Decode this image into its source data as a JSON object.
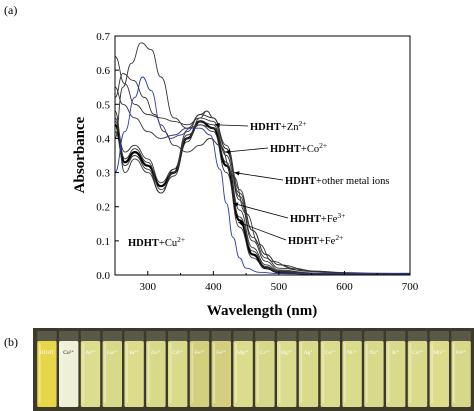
{
  "panel_a_label": "(a)",
  "panel_b_label": "(b)",
  "chart_data": {
    "type": "line",
    "xlabel": "Wavelength (nm)",
    "ylabel": "Absorbance",
    "xlim": [
      250,
      700
    ],
    "ylim": [
      0.0,
      0.7
    ],
    "xticks": [
      300,
      400,
      500,
      600,
      700
    ],
    "yticks": [
      0.0,
      0.1,
      0.2,
      0.3,
      0.4,
      0.5,
      0.6,
      0.7
    ],
    "annotations": [
      {
        "bold": "HDHT",
        "text": "+Zn",
        "sup": "2+",
        "arrow_to": [
          402,
          0.44
        ]
      },
      {
        "bold": "HDHT",
        "text": "+Co",
        "sup": "2+",
        "arrow_to": [
          418,
          0.36
        ]
      },
      {
        "bold": "HDHT",
        "text": "+other metal ions",
        "sup": "",
        "arrow_to": [
          432,
          0.3
        ]
      },
      {
        "bold": "HDHT",
        "text": "+Fe",
        "sup": "3+",
        "arrow_to": [
          430,
          0.21
        ]
      },
      {
        "bold": "HDHT",
        "text": "+Fe",
        "sup": "2+",
        "arrow_to": [
          438,
          0.155
        ]
      },
      {
        "bold": "HDHT",
        "text": "+Cu",
        "sup": "2+",
        "arrow_to": null
      }
    ],
    "series": [
      {
        "color": "#000000",
        "bold": true,
        "x": [
          250,
          265,
          280,
          300,
          320,
          340,
          360,
          380,
          400,
          420,
          440,
          460,
          480,
          500,
          550,
          600,
          650,
          700
        ],
        "y": [
          0.44,
          0.33,
          0.36,
          0.32,
          0.26,
          0.3,
          0.4,
          0.45,
          0.43,
          0.32,
          0.16,
          0.06,
          0.02,
          0.008,
          0.004,
          0.003,
          0.003,
          0.003
        ]
      },
      {
        "color": "#333333",
        "bold": false,
        "x": [
          250,
          265,
          280,
          300,
          320,
          340,
          360,
          380,
          400,
          420,
          440,
          460,
          480,
          500,
          550,
          600,
          650,
          700
        ],
        "y": [
          0.46,
          0.34,
          0.37,
          0.33,
          0.25,
          0.29,
          0.39,
          0.46,
          0.45,
          0.35,
          0.19,
          0.08,
          0.03,
          0.012,
          0.005,
          0.003,
          0.003,
          0.003
        ]
      },
      {
        "color": "#333333",
        "bold": false,
        "x": [
          250,
          265,
          280,
          300,
          320,
          340,
          360,
          380,
          400,
          420,
          440,
          460,
          480,
          500,
          550,
          600,
          650,
          700
        ],
        "y": [
          0.42,
          0.32,
          0.35,
          0.31,
          0.24,
          0.3,
          0.41,
          0.44,
          0.42,
          0.3,
          0.14,
          0.05,
          0.02,
          0.008,
          0.004,
          0.003,
          0.003,
          0.003
        ]
      },
      {
        "color": "#333333",
        "bold": false,
        "x": [
          250,
          265,
          280,
          300,
          320,
          340,
          360,
          380,
          400,
          420,
          440,
          460,
          480,
          500,
          550,
          600,
          650,
          700
        ],
        "y": [
          0.48,
          0.3,
          0.34,
          0.3,
          0.24,
          0.31,
          0.42,
          0.47,
          0.46,
          0.37,
          0.22,
          0.1,
          0.04,
          0.015,
          0.006,
          0.004,
          0.003,
          0.003
        ]
      },
      {
        "color": "#333333",
        "bold": false,
        "x": [
          250,
          265,
          280,
          300,
          320,
          340,
          360,
          380,
          400,
          420,
          440,
          460,
          480,
          500,
          550,
          600,
          650,
          700
        ],
        "y": [
          0.45,
          0.36,
          0.38,
          0.34,
          0.27,
          0.31,
          0.4,
          0.45,
          0.44,
          0.33,
          0.17,
          0.07,
          0.025,
          0.01,
          0.005,
          0.003,
          0.003,
          0.003
        ]
      },
      {
        "color": "#333333",
        "bold": false,
        "x": [
          250,
          262,
          275,
          290,
          305,
          320,
          340,
          360,
          380,
          390,
          400,
          420,
          440,
          460,
          480,
          500,
          550,
          600,
          650,
          700
        ],
        "y": [
          0.4,
          0.55,
          0.62,
          0.68,
          0.66,
          0.58,
          0.46,
          0.43,
          0.47,
          0.48,
          0.46,
          0.37,
          0.23,
          0.11,
          0.05,
          0.02,
          0.01,
          0.006,
          0.004,
          0.003
        ]
      },
      {
        "color": "#333333",
        "bold": false,
        "x": [
          250,
          265,
          280,
          300,
          320,
          340,
          360,
          380,
          390,
          400,
          420,
          440,
          460,
          480,
          500,
          550,
          600,
          650,
          700
        ],
        "y": [
          0.64,
          0.56,
          0.5,
          0.47,
          0.46,
          0.45,
          0.44,
          0.46,
          0.48,
          0.46,
          0.38,
          0.25,
          0.13,
          0.06,
          0.03,
          0.012,
          0.007,
          0.005,
          0.004
        ]
      },
      {
        "color": "#333333",
        "bold": false,
        "x": [
          250,
          262,
          278,
          295,
          310,
          325,
          340,
          360,
          380,
          395,
          410,
          430,
          450,
          470,
          490,
          520,
          560,
          600,
          650,
          700
        ],
        "y": [
          0.52,
          0.59,
          0.57,
          0.52,
          0.47,
          0.42,
          0.38,
          0.36,
          0.38,
          0.4,
          0.38,
          0.29,
          0.18,
          0.09,
          0.04,
          0.02,
          0.01,
          0.006,
          0.004,
          0.003
        ]
      },
      {
        "color": "#333333",
        "bold": false,
        "x": [
          250,
          262,
          280,
          300,
          320,
          340,
          360,
          380,
          400,
          420,
          440,
          460,
          480,
          500,
          530,
          560,
          600,
          650,
          700
        ],
        "y": [
          0.55,
          0.5,
          0.46,
          0.42,
          0.4,
          0.41,
          0.43,
          0.44,
          0.43,
          0.36,
          0.24,
          0.13,
          0.06,
          0.03,
          0.015,
          0.01,
          0.006,
          0.004,
          0.003
        ]
      },
      {
        "color": "#2b3ea8",
        "bold": false,
        "x": [
          250,
          265,
          280,
          292,
          305,
          320,
          335,
          350,
          365,
          380,
          395,
          410,
          420,
          430,
          440,
          450,
          470,
          500,
          550,
          600,
          700
        ],
        "y": [
          0.3,
          0.42,
          0.52,
          0.58,
          0.54,
          0.44,
          0.4,
          0.41,
          0.43,
          0.43,
          0.41,
          0.31,
          0.21,
          0.11,
          0.05,
          0.02,
          0.008,
          0.004,
          0.003,
          0.003,
          0.003
        ]
      }
    ]
  },
  "vials": {
    "labels": [
      "HDHT",
      "Cu²⁺",
      "Al³⁺",
      "Ga³⁺",
      "In³⁺",
      "Zn²⁺",
      "Cd²⁺",
      "Fe²⁺",
      "Fe³⁺",
      "Mg²⁺",
      "Cr³⁺",
      "Hg²⁺",
      "Ag⁺",
      "Co²⁺",
      "Ni²⁺",
      "Na⁺",
      "K⁺",
      "Ca²⁺",
      "Mn²⁺",
      "Pd²⁺"
    ],
    "colors": [
      "#e7d54a",
      "#eef0d8",
      "#dcdd8e",
      "#d8d98a",
      "#dcdc8c",
      "#d9d98a",
      "#dada8b",
      "#d2d07c",
      "#d3cf7e",
      "#dcdd8c",
      "#d8d88a",
      "#dcdc8e",
      "#d9da8b",
      "#dcdc8e",
      "#dbdb8c",
      "#d8d98a",
      "#d9da8b",
      "#dada8c",
      "#dcdc8c",
      "#d8d88a"
    ]
  }
}
